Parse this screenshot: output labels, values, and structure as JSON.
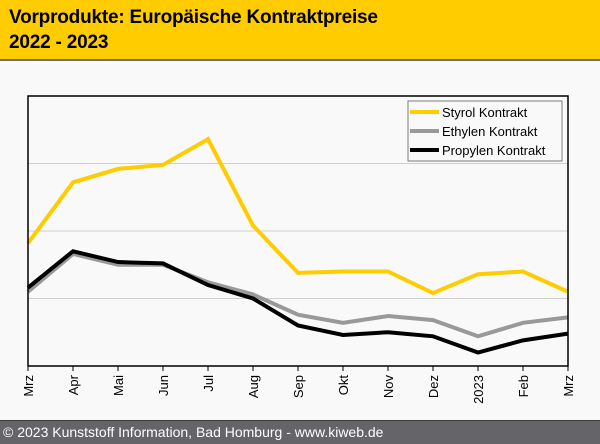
{
  "header": {
    "title_line1": "Vorprodukte: Europäische Kontraktpreise",
    "title_line2": "2022 - 2023"
  },
  "footer": {
    "text": "© 2023 Kunststoff Information, Bad Homburg - www.kiweb.de"
  },
  "colors": {
    "header_bg": "#ffcc00",
    "footer_bg": "#646469",
    "styrol": "#ffcc00",
    "ethylen": "#999999",
    "propylen": "#000000",
    "gridline": "#d0d0d0"
  },
  "chart_data": {
    "type": "line",
    "title": "Vorprodukte: Europäische Kontraktpreise 2022 - 2023",
    "xlabel": "",
    "ylabel": "",
    "y_note": "no y-axis labels shown; values are relative index (0-100) estimated from gridlines",
    "ylim": [
      0,
      100
    ],
    "yticks": [
      25,
      50,
      75
    ],
    "grid": true,
    "legend_position": "top-right",
    "categories": [
      "Mrz",
      "Apr",
      "Mai",
      "Jun",
      "Jul",
      "Aug",
      "Sep",
      "Okt",
      "Nov",
      "Dez",
      "2023",
      "Feb",
      "Mrz"
    ],
    "series": [
      {
        "name": "Styrol Kontrakt",
        "color": "#ffcc00",
        "values": [
          45.5,
          68,
          73,
          74.5,
          84,
          52,
          34.5,
          35,
          35,
          27,
          34,
          35,
          27.5
        ]
      },
      {
        "name": "Ethylen Kontrakt",
        "color": "#999999",
        "values": [
          27.5,
          41.5,
          37.5,
          37.5,
          31,
          26.5,
          19,
          16,
          18.5,
          17,
          11,
          16,
          18
        ]
      },
      {
        "name": "Propylen Kontrakt",
        "color": "#000000",
        "values": [
          29,
          42.5,
          38.5,
          38,
          30,
          25,
          15,
          11.5,
          12.5,
          11,
          5,
          9.5,
          12
        ]
      }
    ]
  }
}
